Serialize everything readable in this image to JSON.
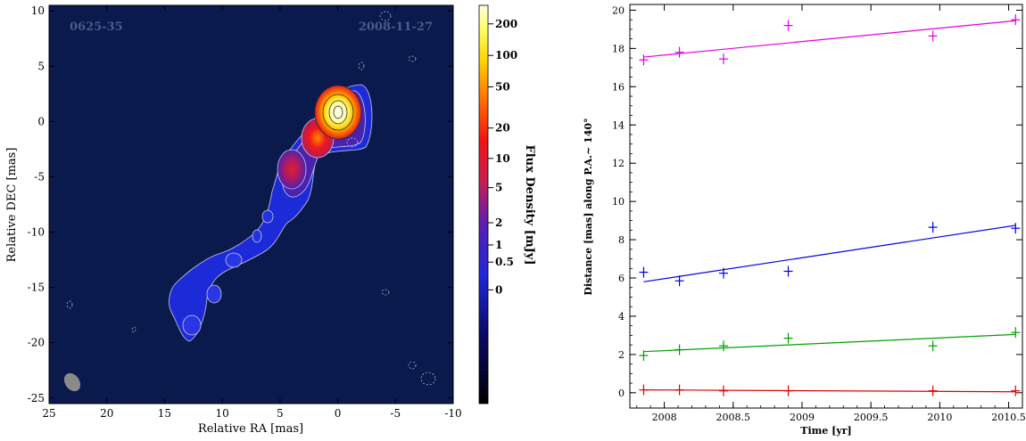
{
  "chart_data": [
    {
      "type": "heatmap",
      "source_name": "0625-35",
      "epoch": "2008-11-27",
      "xlabel": "Relative RA [mas]",
      "ylabel": "Relative DEC [mas]",
      "xlim": [
        25,
        -10
      ],
      "ylim": [
        -25.5,
        10.5
      ],
      "x_ticks": [
        "25",
        "20",
        "15",
        "10",
        "5",
        "0",
        "-5",
        "-10"
      ],
      "y_ticks": [
        "10",
        "5",
        "0",
        "-5",
        "-10",
        "-15",
        "-20",
        "-25"
      ],
      "colorbar": {
        "label": "Flux Density [mJy]",
        "scale": "log",
        "ticks": [
          "200",
          "100",
          "50",
          "20",
          "10",
          "5",
          "2",
          "1",
          "0.5",
          "0"
        ],
        "tick_values": [
          200,
          100,
          50,
          20,
          10,
          5,
          2,
          1,
          0.5,
          0
        ]
      },
      "colors": {
        "background": "#0a1a4c",
        "contour": "#c8c8e6",
        "core": "#ffffe0"
      }
    },
    {
      "type": "scatter",
      "xlabel": "Time [yr]",
      "ylabel": "Distance [mas] along P.A.~ 140°",
      "xlim": [
        2007.75,
        2010.6
      ],
      "ylim": [
        -0.8,
        20.3
      ],
      "x_ticks": [
        "2008",
        "2008.5",
        "2009",
        "2009.5",
        "2010",
        "2010.5"
      ],
      "x_tick_values": [
        2008,
        2008.5,
        2009,
        2009.5,
        2010,
        2010.5
      ],
      "y_ticks": [
        "0",
        "2",
        "4",
        "6",
        "8",
        "10",
        "12",
        "14",
        "16",
        "18",
        "20"
      ],
      "y_tick_values": [
        0,
        2,
        4,
        6,
        8,
        10,
        12,
        14,
        16,
        18,
        20
      ],
      "series": [
        {
          "color": "#e000e0",
          "x": [
            2007.85,
            2008.11,
            2008.43,
            2008.9,
            2009.95,
            2010.55
          ],
          "y": [
            17.4,
            17.8,
            17.45,
            19.2,
            18.65,
            19.5
          ],
          "fit": [
            [
              2007.85,
              17.55
            ],
            [
              2010.55,
              19.45
            ]
          ]
        },
        {
          "color": "#0000e0",
          "x": [
            2007.85,
            2008.11,
            2008.43,
            2008.9,
            2009.95,
            2010.55
          ],
          "y": [
            6.3,
            5.85,
            6.25,
            6.35,
            8.65,
            8.6
          ],
          "fit": [
            [
              2007.85,
              5.8
            ],
            [
              2010.55,
              8.75
            ]
          ]
        },
        {
          "color": "#00a000",
          "x": [
            2007.85,
            2008.11,
            2008.43,
            2008.9,
            2009.95,
            2010.55
          ],
          "y": [
            1.95,
            2.25,
            2.45,
            2.85,
            2.45,
            3.15
          ],
          "fit": [
            [
              2007.85,
              2.15
            ],
            [
              2010.55,
              3.05
            ]
          ]
        },
        {
          "color": "#e00000",
          "x": [
            2007.85,
            2008.11,
            2008.43,
            2008.9,
            2009.95,
            2010.55
          ],
          "y": [
            0.15,
            0.15,
            0.1,
            0.1,
            0.1,
            0.1
          ],
          "fit": [
            [
              2007.85,
              0.15
            ],
            [
              2010.55,
              0.05
            ]
          ]
        }
      ]
    }
  ]
}
